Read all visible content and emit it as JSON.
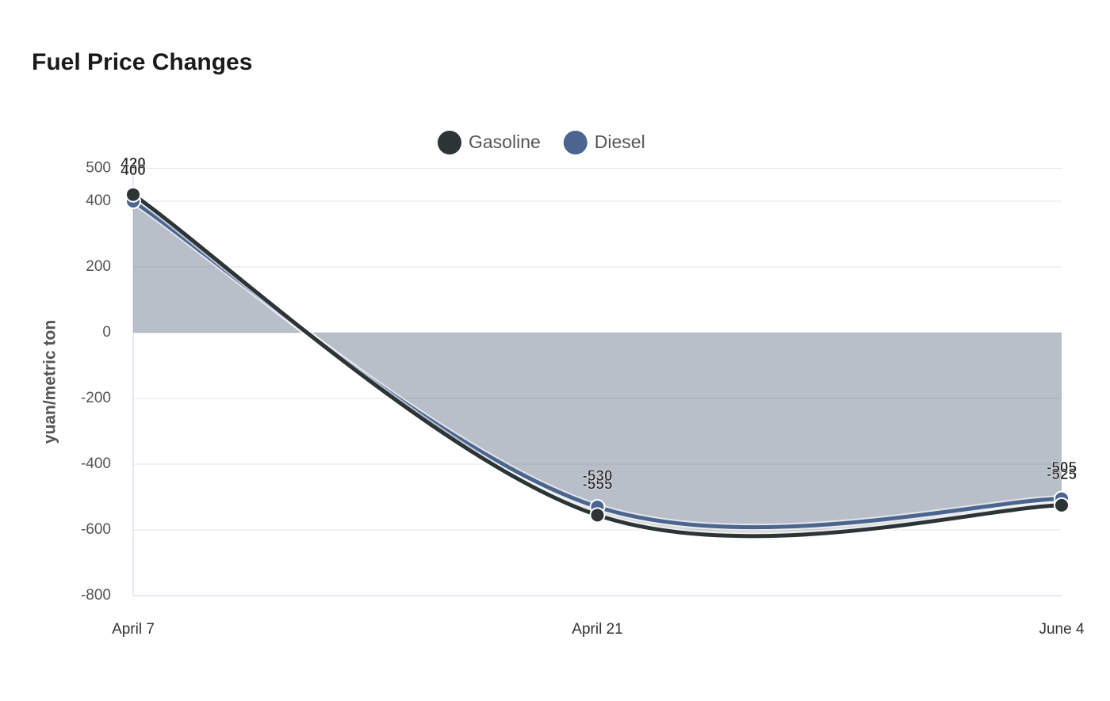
{
  "chart_data": {
    "type": "area",
    "title": "Fuel Price Changes",
    "y_label": "yuan/metric ton",
    "categories": [
      "April 7",
      "April 21",
      "June 4"
    ],
    "series": [
      {
        "name": "Gasoline",
        "color": "#2d3436",
        "values": [
          420,
          -555,
          -525
        ]
      },
      {
        "name": "Diesel",
        "color": "#4a6590",
        "values": [
          400,
          -530,
          -505
        ]
      }
    ],
    "ylim": [
      -800,
      500
    ],
    "yticks": [
      -800,
      -600,
      -400,
      -200,
      0,
      200,
      400,
      500
    ],
    "grid": true,
    "legend": "top",
    "smooth": true
  }
}
